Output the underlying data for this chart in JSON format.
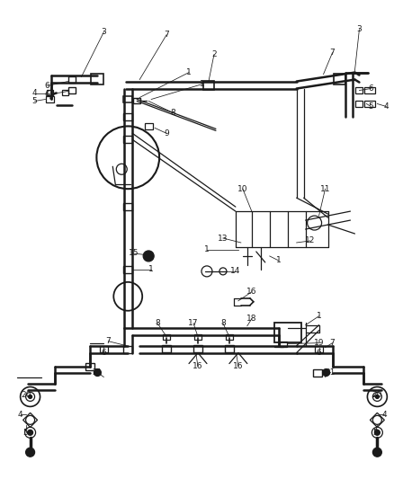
{
  "bg_color": "#ffffff",
  "lc": "#1a1a1a",
  "lw_main": 1.8,
  "lw_thin": 0.9,
  "lw_label": 0.55,
  "fig_w": 4.38,
  "fig_h": 5.33,
  "dpi": 100
}
